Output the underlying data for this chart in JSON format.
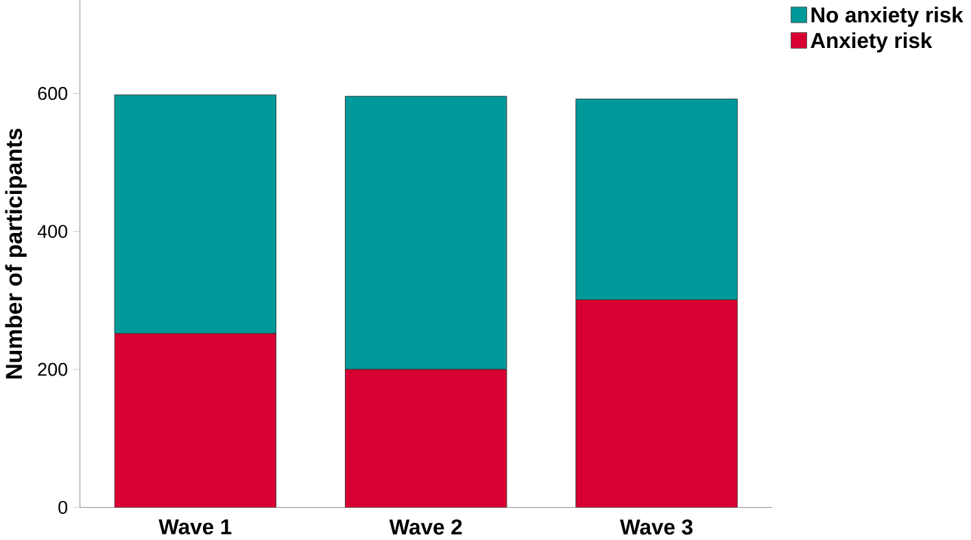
{
  "chart_data": {
    "type": "bar",
    "stacked": true,
    "ylabel": "Number of participants",
    "categories": [
      "Wave 1",
      "Wave 2",
      "Wave 3"
    ],
    "series": [
      {
        "name": "Anxiety risk",
        "color": "#d80032",
        "values": [
          252,
          200,
          301
        ]
      },
      {
        "name": "No anxiety risk",
        "color": "#009999",
        "values": [
          346,
          396,
          291
        ]
      }
    ],
    "ylim": [
      0,
      735
    ],
    "yticks": [
      0,
      200,
      400,
      600
    ],
    "grid": false,
    "legend": "top right"
  }
}
